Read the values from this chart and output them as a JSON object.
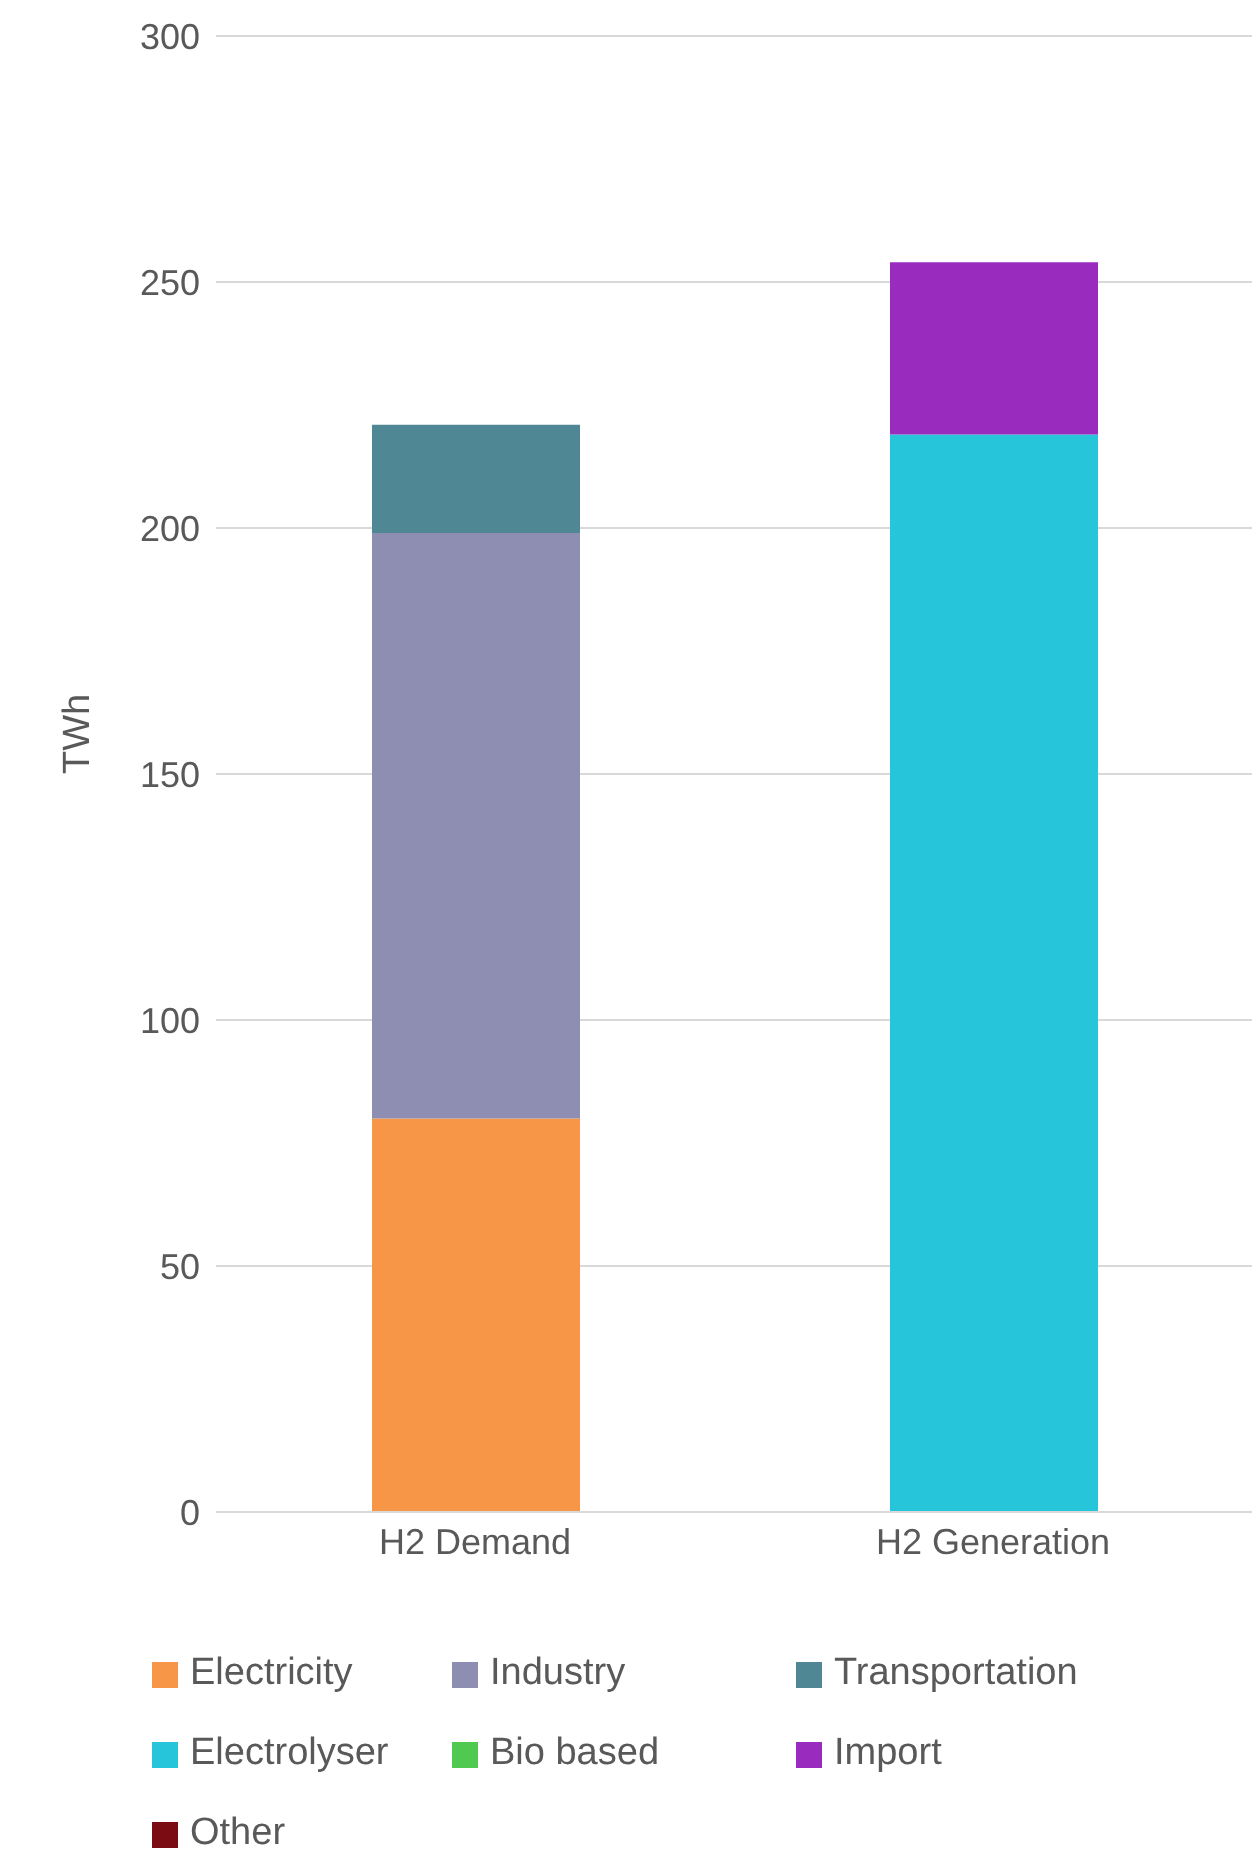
{
  "chart_data": {
    "type": "bar",
    "stacked": true,
    "ylabel": "TWh",
    "categories": [
      "H2 Demand",
      "H2 Generation"
    ],
    "series": [
      {
        "name": "Electricity",
        "color": "#f79646",
        "values": [
          80,
          null
        ]
      },
      {
        "name": "Industry",
        "color": "#8e8eb3",
        "values": [
          119,
          null
        ]
      },
      {
        "name": "Transportation",
        "color": "#4f8795",
        "values": [
          22,
          null
        ]
      },
      {
        "name": "Electrolyser",
        "color": "#27c5d9",
        "values": [
          null,
          219
        ]
      },
      {
        "name": "Bio based",
        "color": "#4fc94f",
        "values": [
          null,
          null
        ]
      },
      {
        "name": "Import",
        "color": "#9a2bbf",
        "values": [
          null,
          35
        ]
      },
      {
        "name": "Other",
        "color": "#7b0c14",
        "values": [
          null,
          null
        ]
      }
    ],
    "ylim": [
      0,
      300
    ],
    "yticks": [
      0,
      50,
      100,
      150,
      200,
      250,
      300
    ],
    "grid": "y",
    "legend": "bottom"
  }
}
